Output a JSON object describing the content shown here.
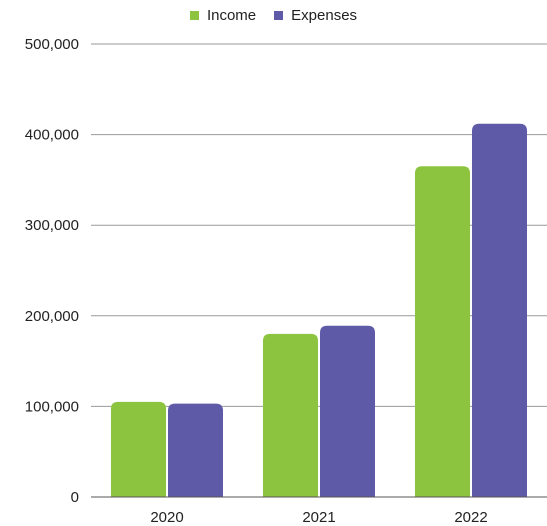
{
  "chart_data": {
    "type": "bar",
    "categories": [
      "2020",
      "2021",
      "2022"
    ],
    "series": [
      {
        "name": "Income",
        "color": "#8dc43f",
        "values": [
          105000,
          180000,
          365000
        ]
      },
      {
        "name": "Expenses",
        "color": "#5f5aa8",
        "values": [
          103000,
          189000,
          412000
        ]
      }
    ],
    "y_ticks": [
      {
        "value": 0,
        "label": "0"
      },
      {
        "value": 100000,
        "label": "100,000"
      },
      {
        "value": 200000,
        "label": "200,000"
      },
      {
        "value": 300000,
        "label": "300,000"
      },
      {
        "value": 400000,
        "label": "400,000"
      },
      {
        "value": 500000,
        "label": "500,000"
      }
    ],
    "ylim": [
      0,
      500000
    ],
    "grid": true,
    "legend_position": "top-center"
  }
}
